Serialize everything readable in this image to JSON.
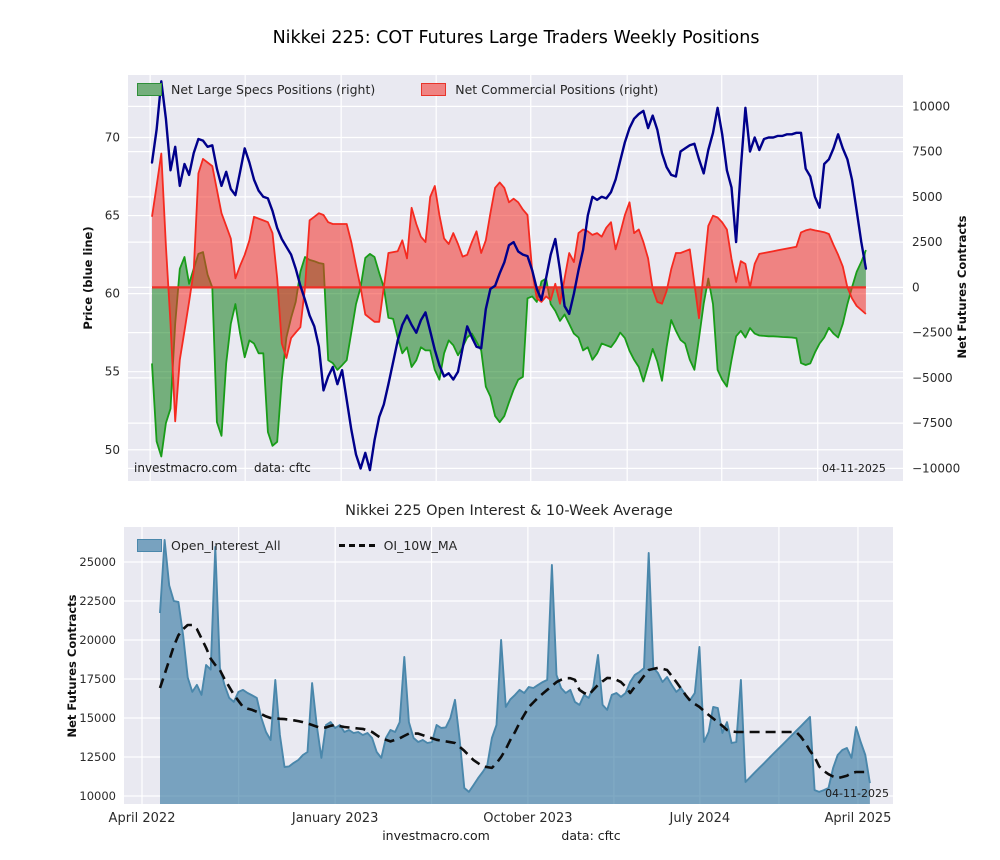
{
  "top_chart": {
    "title": "Nikkei 225: COT Futures Large Traders Weekly Positions",
    "legend": [
      {
        "label": "Net Large Specs Positions (right)",
        "color": "#2f8f3a"
      },
      {
        "label": "Net Commercial Positions (right)",
        "color": "#e8352b"
      }
    ],
    "left_axis_label": "Price (blue line)",
    "right_axis_label": "Net Futures Contracts",
    "watermark": "investmacro.com",
    "source": "data: cftc",
    "date_annotation": "04-11-2025"
  },
  "bottom_chart": {
    "title": "Nikkei 225 Open Interest & 10-Week Average",
    "legend": [
      {
        "label": "Open_Interest_All",
        "color": "#4a87ab"
      },
      {
        "label": "OI_10W_MA",
        "color": "#0d0d0d"
      }
    ],
    "y_axis_label": "Net Futures Contracts",
    "watermark": "investmacro.com",
    "source": "data: cftc",
    "date_annotation": "04-11-2025"
  },
  "colors": {
    "plot_bg": "#e9e9f1",
    "grid": "#ffffff",
    "price_line": "#00008b",
    "specs_line": "#189c18",
    "specs_fill": "rgba(20,128,28,0.55)",
    "comm_line": "#f52a20",
    "comm_fill": "rgba(244,48,39,0.55)",
    "zero_line": "#f03127",
    "oi_line": "#4a87ab",
    "oi_fill": "rgba(50,118,160,0.62)",
    "ma_line": "#0d0d0d",
    "tick_text": "#2b2b2b"
  },
  "chart_data": [
    {
      "type": "area",
      "title": "Nikkei 225: COT Futures Large Traders Weekly Positions",
      "x_unit": "weekly, April 2022 to 04-11-2025 (155 weeks)",
      "left_axis": {
        "label": "Price (blue line)",
        "ticks": [
          70,
          65,
          60,
          55,
          50
        ],
        "range": [
          48.0,
          74.0
        ]
      },
      "right_axis": {
        "label": "Net Futures Contracts",
        "ticks": [
          10000,
          7500,
          5000,
          2500,
          0,
          -2500,
          -5000,
          -7500,
          -10000
        ],
        "range": [
          -10700,
          11700
        ]
      },
      "grid": "on",
      "grid_weeks": [
        -0.4,
        20.1,
        40.8,
        61.3,
        81.7,
        102.5,
        122.9,
        143.6
      ],
      "legend_position": "upper left",
      "series": [
        {
          "name": "Price (blue line)",
          "axis": "left",
          "type": "line",
          "values": [
            68.4,
            70.5,
            73.6,
            71.2,
            67.9,
            69.4,
            66.9,
            68.3,
            67.6,
            69.0,
            69.9,
            69.8,
            69.4,
            69.5,
            68.0,
            66.9,
            67.8,
            66.7,
            66.3,
            67.8,
            69.3,
            68.4,
            67.3,
            66.6,
            66.2,
            66.1,
            65.3,
            64.2,
            63.5,
            63.0,
            62.5,
            61.6,
            60.5,
            59.6,
            58.6,
            57.9,
            56.6,
            53.8,
            54.7,
            55.3,
            54.2,
            55.1,
            53.2,
            51.3,
            49.7,
            48.8,
            49.8,
            48.7,
            50.6,
            52.1,
            52.9,
            54.2,
            55.6,
            57.0,
            58.0,
            58.6,
            58.0,
            57.5,
            58.3,
            58.8,
            57.6,
            56.4,
            55.4,
            54.7,
            54.9,
            54.5,
            55.0,
            56.5,
            57.9,
            57.2,
            56.6,
            56.5,
            59.0,
            60.3,
            60.5,
            61.3,
            62.0,
            63.1,
            63.3,
            62.7,
            62.5,
            62.4,
            61.5,
            60.3,
            59.6,
            61.0,
            62.5,
            63.5,
            61.5,
            59.2,
            58.7,
            60.0,
            61.5,
            62.8,
            65.0,
            66.2,
            66.0,
            66.2,
            66.1,
            66.5,
            67.3,
            68.5,
            69.7,
            70.6,
            71.2,
            71.5,
            71.7,
            70.6,
            71.4,
            70.5,
            69.0,
            68.1,
            67.6,
            67.5,
            69.1,
            69.3,
            69.5,
            69.6,
            68.6,
            67.7,
            69.2,
            70.3,
            71.9,
            70.2,
            67.9,
            66.8,
            63.3,
            68.0,
            71.9,
            69.1,
            70.0,
            69.2,
            69.9,
            70.0,
            70.0,
            70.1,
            70.1,
            70.2,
            70.2,
            70.3,
            70.3,
            68.0,
            67.5,
            66.2,
            65.5,
            68.3,
            68.6,
            69.3,
            70.2,
            69.3,
            68.6,
            67.3,
            65.3,
            63.3,
            61.6
          ]
        },
        {
          "name": "Net Large Specs Positions",
          "axis": "right",
          "type": "area",
          "values": [
            -4200,
            -8500,
            -9340,
            -7500,
            -6700,
            -2000,
            1030,
            1680,
            200,
            1030,
            1850,
            1950,
            700,
            0,
            -7440,
            -8200,
            -4180,
            -2010,
            -920,
            -2550,
            -3860,
            -2930,
            -3100,
            -3640,
            -3640,
            -7990,
            -8750,
            -8530,
            -5100,
            -2770,
            -1680,
            -800,
            870,
            1680,
            1520,
            1450,
            1350,
            1300,
            -4020,
            -4180,
            -4560,
            -4300,
            -4020,
            -2500,
            -920,
            0,
            1630,
            1850,
            1680,
            800,
            0,
            -1680,
            -1740,
            -2770,
            -3640,
            -3310,
            -4400,
            -4020,
            -3310,
            -3480,
            -3480,
            -4560,
            -5100,
            -3640,
            -2930,
            -3200,
            -3750,
            -3310,
            -2770,
            -2550,
            -3000,
            -3480,
            -5480,
            -6030,
            -7110,
            -7450,
            -7110,
            -6350,
            -5650,
            -5100,
            -4940,
            -600,
            -500,
            -800,
            330,
            490,
            -920,
            -1300,
            -1850,
            -1500,
            -2010,
            -2550,
            -2770,
            -3480,
            -3310,
            -4000,
            -3650,
            -3100,
            -3200,
            -3300,
            -2950,
            -2500,
            -2800,
            -3500,
            -4000,
            -4400,
            -5200,
            -4300,
            -3400,
            -4100,
            -5160,
            -3300,
            -1800,
            -2400,
            -2900,
            -3100,
            -4000,
            -4550,
            -2800,
            -900,
            490,
            -920,
            -4560,
            -5100,
            -5480,
            -4020,
            -2700,
            -2400,
            -2770,
            -2250,
            -2550,
            -2660,
            -2680,
            -2700,
            -2700,
            -2720,
            -2740,
            -2750,
            -2770,
            -2800,
            -4180,
            -4290,
            -4200,
            -3600,
            -3100,
            -2770,
            -2230,
            -2550,
            -2770,
            -2010,
            -920,
            0,
            870,
            1410,
            2060
          ]
        },
        {
          "name": "Net Commercial Positions",
          "axis": "right",
          "type": "area",
          "values": [
            3900,
            5600,
            7400,
            2300,
            -2000,
            -7400,
            -4000,
            -2400,
            -800,
            900,
            6300,
            7100,
            6900,
            6700,
            5400,
            4100,
            3400,
            2700,
            500,
            1200,
            1800,
            2600,
            3900,
            3800,
            3700,
            3600,
            3000,
            500,
            -3100,
            -3900,
            -2800,
            -2500,
            -2200,
            0,
            3700,
            3900,
            4100,
            4000,
            3600,
            3500,
            3500,
            3500,
            3500,
            2500,
            1200,
            0,
            -1500,
            -1700,
            -1900,
            -1900,
            0,
            1900,
            1950,
            2000,
            2600,
            1600,
            4400,
            3500,
            2800,
            2500,
            5000,
            5600,
            4000,
            2700,
            2400,
            3000,
            2400,
            1700,
            1800,
            2500,
            3100,
            1900,
            2600,
            4100,
            5500,
            5800,
            5500,
            4700,
            4900,
            4700,
            4300,
            4000,
            900,
            -600,
            -800,
            -500,
            -700,
            200,
            -900,
            500,
            1900,
            1400,
            3000,
            3200,
            3100,
            2900,
            3000,
            2800,
            3300,
            3600,
            2100,
            3000,
            4000,
            4700,
            3000,
            3200,
            2500,
            1600,
            -100,
            -800,
            -900,
            -200,
            1000,
            1900,
            1900,
            2000,
            2100,
            200,
            -1700,
            900,
            3400,
            3960,
            3860,
            3590,
            3200,
            1580,
            300,
            1450,
            1300,
            0,
            1300,
            1850,
            1900,
            1950,
            2000,
            2050,
            2100,
            2150,
            2200,
            2250,
            3040,
            3150,
            3210,
            3150,
            3100,
            3050,
            2950,
            2350,
            1800,
            1150,
            0,
            -600,
            -1030,
            -1250,
            -1470
          ]
        }
      ]
    },
    {
      "type": "area",
      "title": "Nikkei 225 Open Interest & 10-Week Average",
      "x_unit": "weekly, April 2022 to 04-11-2025 (155 weeks)",
      "ylabel": "Net Futures Contracts",
      "y_ticks": [
        25000,
        22500,
        20000,
        17500,
        15000,
        12500,
        10000
      ],
      "ylim": [
        9400,
        27200
      ],
      "grid": "on",
      "grid_weeks": [
        -3.9,
        17.05,
        38.0,
        58.9,
        79.8,
        98.45,
        117.1,
        134.25,
        151.4
      ],
      "x_ticks": [
        {
          "label": "April 2022",
          "week": -3.9
        },
        {
          "label": "January 2023",
          "week": 38.0
        },
        {
          "label": "October 2023",
          "week": 79.8
        },
        {
          "label": "July 2024",
          "week": 117.1
        },
        {
          "label": "April 2025",
          "week": 151.4
        }
      ],
      "legend_position": "upper left",
      "series": [
        {
          "name": "Open_Interest_All",
          "type": "area",
          "values": [
            21730,
            26410,
            23500,
            22500,
            22440,
            20320,
            17600,
            16670,
            17120,
            16480,
            18400,
            18100,
            25960,
            18210,
            17120,
            16290,
            16030,
            16670,
            16800,
            16600,
            16450,
            16290,
            15000,
            14100,
            13590,
            17440,
            13910,
            11860,
            11900,
            12120,
            12310,
            12630,
            12820,
            17240,
            14550,
            12440,
            14550,
            14740,
            14360,
            14550,
            14100,
            14230,
            14040,
            14100,
            13910,
            14040,
            13720,
            12820,
            12440,
            13720,
            14230,
            14100,
            14740,
            18910,
            14740,
            13720,
            13460,
            13590,
            13400,
            13460,
            14550,
            14360,
            14400,
            15000,
            16160,
            13590,
            10510,
            10260,
            10700,
            11150,
            11540,
            11990,
            13720,
            14550,
            20000,
            15710,
            16200,
            16480,
            16800,
            16600,
            16990,
            16920,
            17120,
            17300,
            17440,
            24810,
            17760,
            16920,
            16600,
            16800,
            16030,
            15840,
            16480,
            16290,
            17000,
            19040,
            15840,
            15520,
            16480,
            16600,
            16350,
            16600,
            17310,
            17760,
            17950,
            18200,
            25580,
            18210,
            17890,
            17310,
            17630,
            17120,
            16670,
            16920,
            16480,
            16160,
            16600,
            19550,
            13460,
            14100,
            15710,
            15640,
            14040,
            14740,
            13400,
            13460,
            17440,
            10900,
            11200,
            11500,
            11800,
            12090,
            12390,
            12690,
            12990,
            13280,
            13580,
            13880,
            14180,
            14470,
            14770,
            15070,
            10380,
            10260,
            10380,
            10510,
            11790,
            12630,
            12950,
            13080,
            12440,
            14420,
            13460,
            12630,
            10830
          ]
        },
        {
          "name": "OI_10W_MA",
          "type": "dashed-line",
          "values": [
            16920,
            17800,
            18700,
            19600,
            20300,
            20700,
            20960,
            20960,
            20700,
            20100,
            19500,
            18800,
            18400,
            18080,
            17500,
            17000,
            16500,
            16100,
            15710,
            15600,
            15520,
            15400,
            15250,
            15100,
            15000,
            14980,
            14950,
            14930,
            14900,
            14850,
            14800,
            14740,
            14650,
            14550,
            14450,
            14360,
            14400,
            14500,
            14550,
            14480,
            14420,
            14390,
            14360,
            14330,
            14300,
            14200,
            14100,
            13900,
            13700,
            13600,
            13500,
            13600,
            13700,
            13850,
            14000,
            14000,
            14000,
            13900,
            13800,
            13700,
            13600,
            13550,
            13500,
            13450,
            13400,
            13150,
            12900,
            12600,
            12300,
            12100,
            11900,
            11850,
            11800,
            12100,
            12500,
            13000,
            13600,
            14100,
            14700,
            15200,
            15700,
            16000,
            16300,
            16550,
            16800,
            17050,
            17300,
            17450,
            17550,
            17550,
            17450,
            16800,
            16600,
            16480,
            16800,
            17120,
            17350,
            17570,
            17550,
            17450,
            17300,
            17000,
            16600,
            17000,
            17310,
            17700,
            18080,
            18150,
            18210,
            18150,
            18080,
            17700,
            17310,
            16900,
            16480,
            16100,
            15900,
            15710,
            15450,
            15200,
            14970,
            14740,
            14500,
            14230,
            14150,
            14100,
            14100,
            14100,
            14100,
            14100,
            14100,
            14100,
            14100,
            14100,
            14100,
            14100,
            14100,
            14100,
            14100,
            13800,
            13400,
            12900,
            12500,
            11900,
            11600,
            11400,
            11250,
            11150,
            11220,
            11300,
            11470,
            11540,
            11540,
            11540,
            11540
          ]
        }
      ]
    }
  ]
}
